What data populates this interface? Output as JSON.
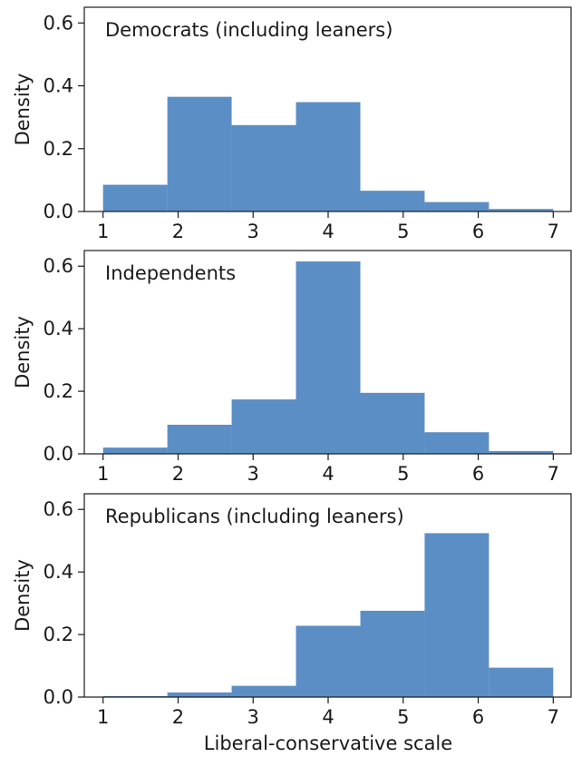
{
  "chart_data": [
    {
      "type": "bar",
      "title": "Democrats (including leaners)",
      "ylabel": "Density",
      "xlabel": "",
      "xlim": [
        0.75,
        7.25
      ],
      "ylim": [
        0,
        0.65
      ],
      "xticks": [
        1,
        2,
        3,
        4,
        5,
        6,
        7
      ],
      "yticks": [
        0.0,
        0.2,
        0.4,
        0.6
      ],
      "bin_edges": [
        1,
        1.857,
        2.714,
        3.571,
        4.429,
        5.286,
        6.143,
        7
      ],
      "values": [
        0.085,
        0.365,
        0.275,
        0.348,
        0.066,
        0.03,
        0.008
      ]
    },
    {
      "type": "bar",
      "title": "Independents",
      "ylabel": "Density",
      "xlabel": "",
      "xlim": [
        0.75,
        7.25
      ],
      "ylim": [
        0,
        0.65
      ],
      "xticks": [
        1,
        2,
        3,
        4,
        5,
        6,
        7
      ],
      "yticks": [
        0.0,
        0.2,
        0.4,
        0.6
      ],
      "bin_edges": [
        1,
        1.857,
        2.714,
        3.571,
        4.429,
        5.286,
        6.143,
        7
      ],
      "values": [
        0.02,
        0.093,
        0.174,
        0.615,
        0.195,
        0.069,
        0.009
      ]
    },
    {
      "type": "bar",
      "title": "Republicans (including leaners)",
      "ylabel": "Density",
      "xlabel": "Liberal-conservative scale",
      "xlim": [
        0.75,
        7.25
      ],
      "ylim": [
        0,
        0.65
      ],
      "xticks": [
        1,
        2,
        3,
        4,
        5,
        6,
        7
      ],
      "yticks": [
        0.0,
        0.2,
        0.4,
        0.6
      ],
      "bin_edges": [
        1,
        1.857,
        2.714,
        3.571,
        4.429,
        5.286,
        6.143,
        7
      ],
      "values": [
        0.003,
        0.015,
        0.036,
        0.228,
        0.276,
        0.524,
        0.094
      ]
    }
  ],
  "colors": {
    "bar": "#5b8ec4",
    "axis": "#1a1a1a"
  }
}
